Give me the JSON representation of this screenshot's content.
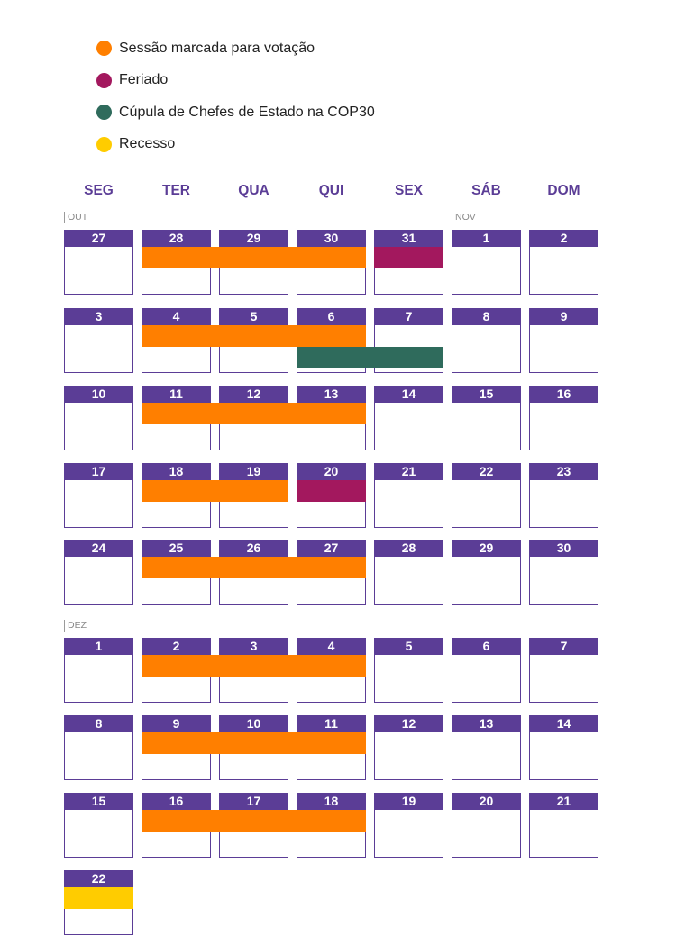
{
  "legend": [
    {
      "label": "Sessão marcada para votação",
      "color": "#ff7f00",
      "icon": "orange-dot-icon"
    },
    {
      "label": "Feriado",
      "color": "#a3185e",
      "icon": "magenta-dot-icon"
    },
    {
      "label": "Cúpula de Chefes de Estado na COP30",
      "color": "#2f6b5c",
      "icon": "green-dot-icon"
    },
    {
      "label": "Recesso",
      "color": "#ffcc00",
      "icon": "yellow-dot-icon"
    }
  ],
  "weekdays": [
    "SEG",
    "TER",
    "QUA",
    "QUI",
    "SEX",
    "SÁB",
    "DOM"
  ],
  "month_labels": [
    {
      "text": "OUT",
      "week": 0,
      "col": 0
    },
    {
      "text": "NOV",
      "week": 0,
      "col": 5
    },
    {
      "text": "DEZ",
      "week": 5,
      "col": 0
    }
  ],
  "weeks": [
    [
      "27",
      "28",
      "29",
      "30",
      "31",
      "1",
      "2"
    ],
    [
      "3",
      "4",
      "5",
      "6",
      "7",
      "8",
      "9"
    ],
    [
      "10",
      "11",
      "12",
      "13",
      "14",
      "15",
      "16"
    ],
    [
      "17",
      "18",
      "19",
      "20",
      "21",
      "22",
      "23"
    ],
    [
      "24",
      "25",
      "26",
      "27",
      "28",
      "29",
      "30"
    ],
    [
      "1",
      "2",
      "3",
      "4",
      "5",
      "6",
      "7"
    ],
    [
      "8",
      "9",
      "10",
      "11",
      "12",
      "13",
      "14"
    ],
    [
      "15",
      "16",
      "17",
      "18",
      "19",
      "20",
      "21"
    ],
    [
      "22"
    ]
  ],
  "events": [
    {
      "type": "session",
      "week": 0,
      "start_col": 1,
      "end_col": 3,
      "color": "#ff7f00"
    },
    {
      "type": "holiday",
      "week": 0,
      "start_col": 4,
      "end_col": 4,
      "color": "#a3185e"
    },
    {
      "type": "session",
      "week": 1,
      "start_col": 1,
      "end_col": 3,
      "color": "#ff7f00"
    },
    {
      "type": "summit",
      "week": 1,
      "start_col": 3,
      "end_col": 4,
      "lane": 1,
      "color": "#2f6b5c"
    },
    {
      "type": "session",
      "week": 2,
      "start_col": 1,
      "end_col": 3,
      "color": "#ff7f00"
    },
    {
      "type": "session",
      "week": 3,
      "start_col": 1,
      "end_col": 2,
      "color": "#ff7f00"
    },
    {
      "type": "holiday",
      "week": 3,
      "start_col": 3,
      "end_col": 3,
      "color": "#a3185e"
    },
    {
      "type": "session",
      "week": 4,
      "start_col": 1,
      "end_col": 3,
      "color": "#ff7f00"
    },
    {
      "type": "session",
      "week": 5,
      "start_col": 1,
      "end_col": 3,
      "color": "#ff7f00"
    },
    {
      "type": "session",
      "week": 6,
      "start_col": 1,
      "end_col": 3,
      "color": "#ff7f00"
    },
    {
      "type": "session",
      "week": 7,
      "start_col": 1,
      "end_col": 3,
      "color": "#ff7f00"
    },
    {
      "type": "recess",
      "week": 8,
      "start_col": 0,
      "end_col": 0,
      "color": "#ffcc00"
    }
  ]
}
